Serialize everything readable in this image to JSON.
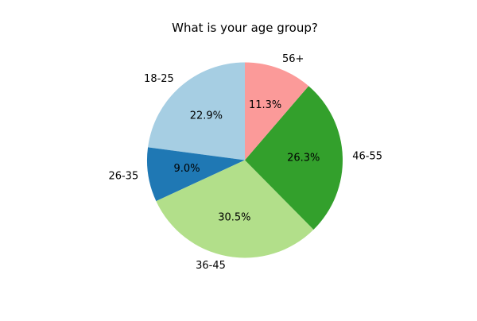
{
  "chart_data": {
    "type": "pie",
    "title": "What is your age group?",
    "start_angle_deg": 90,
    "direction": "counterclockwise",
    "slices": [
      {
        "label": "18-25",
        "value": 22.9,
        "percent_label": "22.9%",
        "color": "#a6cee3"
      },
      {
        "label": "26-35",
        "value": 9.0,
        "percent_label": "9.0%",
        "color": "#1f78b4"
      },
      {
        "label": "36-45",
        "value": 30.5,
        "percent_label": "30.5%",
        "color": "#b2df8a"
      },
      {
        "label": "46-55",
        "value": 26.3,
        "percent_label": "26.3%",
        "color": "#33a02c"
      },
      {
        "label": "56+",
        "value": 11.3,
        "percent_label": "11.3%",
        "color": "#fb9a99"
      }
    ]
  }
}
